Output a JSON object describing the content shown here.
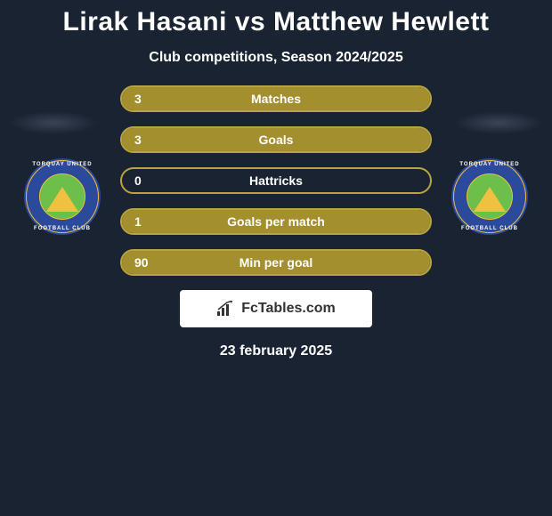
{
  "title": "Lirak Hasani vs Matthew Hewlett",
  "subtitle": "Club competitions, Season 2024/2025",
  "date": "23 february 2025",
  "brand": "FcTables.com",
  "colors": {
    "background": "#1a2332",
    "bar_fill": "#a38f2e",
    "bar_border": "#b8a542",
    "text": "#ffffff",
    "badge_blue": "#2b4a9b",
    "badge_green": "#6bbf4a",
    "badge_gold": "#f0c040"
  },
  "badge": {
    "top_text": "TORQUAY UNITED",
    "bottom_text": "FOOTBALL CLUB"
  },
  "stats": [
    {
      "label": "Matches",
      "value": "3",
      "fill_pct": 100
    },
    {
      "label": "Goals",
      "value": "3",
      "fill_pct": 100
    },
    {
      "label": "Hattricks",
      "value": "0",
      "fill_pct": 0
    },
    {
      "label": "Goals per match",
      "value": "1",
      "fill_pct": 100
    },
    {
      "label": "Min per goal",
      "value": "90",
      "fill_pct": 100
    }
  ]
}
